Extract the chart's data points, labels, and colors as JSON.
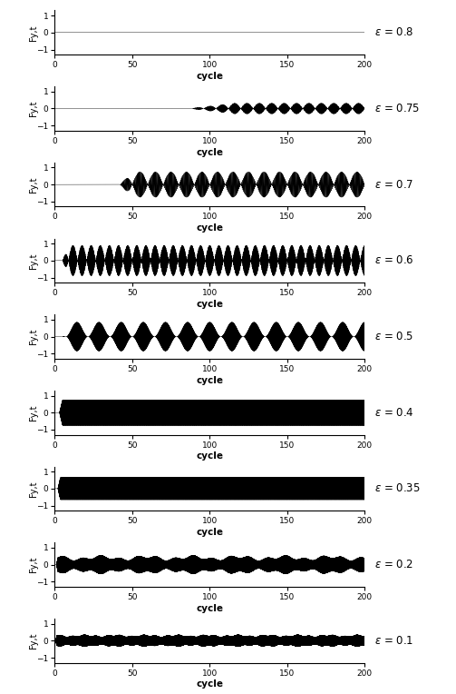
{
  "epsilons": [
    0.8,
    0.75,
    0.7,
    0.6,
    0.5,
    0.4,
    0.35,
    0.2,
    0.1
  ],
  "xlim": [
    0,
    200
  ],
  "ylim": [
    -1.3,
    1.3
  ],
  "yticks": [
    -1,
    0,
    1
  ],
  "xticks": [
    0,
    50,
    100,
    150,
    200
  ],
  "xlabel": "cycle",
  "ylabel": "Fy,t",
  "n_points": 50000,
  "background_color": "#ffffff",
  "line_color": "#000000",
  "line_width": 0.3,
  "fig_width": 5.03,
  "fig_height": 7.64
}
